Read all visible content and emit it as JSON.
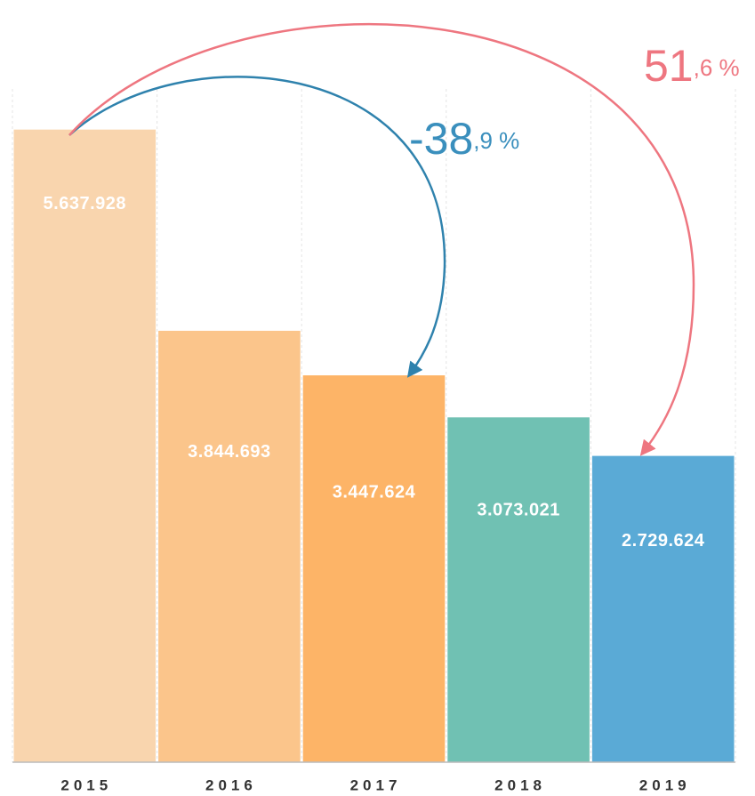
{
  "chart_data": {
    "type": "bar",
    "categories": [
      "2015",
      "2016",
      "2017",
      "2018",
      "2019"
    ],
    "values": [
      5637928,
      3844693,
      3447624,
      3073021,
      2729624
    ],
    "value_labels": [
      "5.637.928",
      "3.844.693",
      "3.447.624",
      "3.073.021",
      "2.729.624"
    ],
    "colors": [
      "#f9d5ae",
      "#fbc58b",
      "#fdb467",
      "#70c1b3",
      "#5aaad6"
    ],
    "ylim": [
      0,
      6000000
    ],
    "grid": true,
    "annotations": [
      {
        "text": "-38",
        "suffix": ",9 %",
        "color": "#3a8fbd"
      },
      {
        "text": "51",
        "suffix": ",6 %",
        "color": "#ee7680"
      }
    ]
  }
}
